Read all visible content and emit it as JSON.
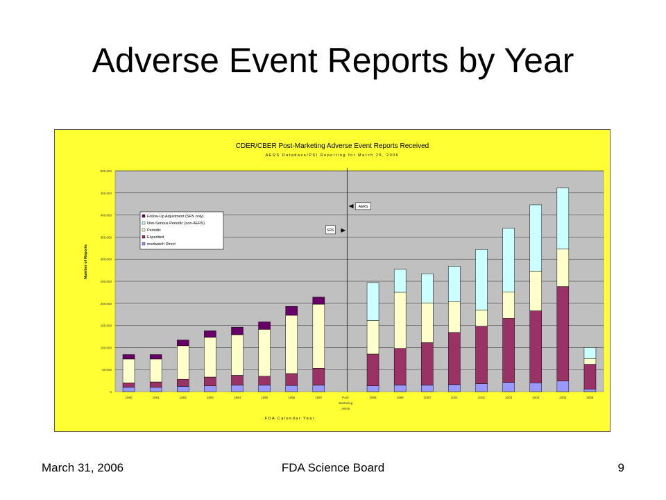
{
  "slide": {
    "title": "Adverse Event Reports by Year",
    "footer_left": "March 31, 2006",
    "footer_center": "FDA Science Board",
    "page_number": "9"
  },
  "chart_data": {
    "type": "bar",
    "stacked": true,
    "title": "CDER/CBER Post-Marketing Adverse Event Reports Received",
    "subtitle": "AERS Database/PSI Reporting for March 29, 2006",
    "xlabel": "FDA Calendar Year",
    "ylabel": "Number of Reports",
    "ylim": [
      0,
      500000
    ],
    "yticks": [
      "0",
      "50,000",
      "100,000",
      "150,000",
      "200,000",
      "250,000",
      "300,000",
      "350,000",
      "400,000",
      "450,000",
      "500,000"
    ],
    "grid": true,
    "legend_position": "top-left",
    "categories": [
      "1990",
      "1991",
      "1992",
      "1993",
      "1994",
      "1995",
      "1996",
      "1997",
      "Post-Marketing AERS",
      "1998",
      "1999",
      "2000",
      "2001",
      "2002",
      "2003",
      "2004",
      "2005",
      "2006"
    ],
    "series": [
      {
        "name": "medwatch Direct",
        "color": "#9999ff",
        "values": [
          10000,
          10000,
          12000,
          13000,
          15000,
          15000,
          14000,
          15000,
          0,
          13000,
          15000,
          15000,
          16000,
          18000,
          21000,
          20000,
          24000,
          6000
        ]
      },
      {
        "name": "Expedited",
        "color": "#993366",
        "values": [
          10000,
          12000,
          16000,
          20000,
          22000,
          20000,
          27000,
          38000,
          0,
          72000,
          83000,
          96000,
          118000,
          130000,
          145000,
          163000,
          214000,
          56000
        ]
      },
      {
        "name": "Periodic",
        "color": "#ffffcc",
        "values": [
          54000,
          52000,
          76000,
          90000,
          92000,
          106000,
          132000,
          145000,
          0,
          76000,
          127000,
          90000,
          70000,
          37000,
          60000,
          90000,
          85000,
          13000
        ]
      },
      {
        "name": "Non-Serious Periodic (non-AERS)",
        "color": "#ccffff",
        "values": [
          0,
          0,
          0,
          0,
          0,
          0,
          0,
          0,
          0,
          86000,
          52000,
          66000,
          80000,
          137000,
          144000,
          150000,
          138000,
          25000
        ]
      },
      {
        "name": "Follow-Up Adjustment (SRS only)",
        "color": "#660066",
        "values": [
          10000,
          10000,
          13000,
          15000,
          17000,
          17000,
          20000,
          16000,
          0,
          0,
          0,
          0,
          0,
          0,
          0,
          0,
          0,
          0
        ]
      }
    ],
    "legend_order": [
      "Follow-Up Adjustment (SRS only)",
      "Non-Serious Periodic (non-AERS)",
      "Periodic",
      "Expedited",
      "medwatch Direct"
    ],
    "annotations": [
      {
        "text": "AERS",
        "category": "Post-Marketing AERS",
        "value": 420000
      },
      {
        "text": "SRS",
        "category": "Post-Marketing AERS",
        "value": 365000
      }
    ],
    "divider_category": "Post-Marketing AERS"
  }
}
